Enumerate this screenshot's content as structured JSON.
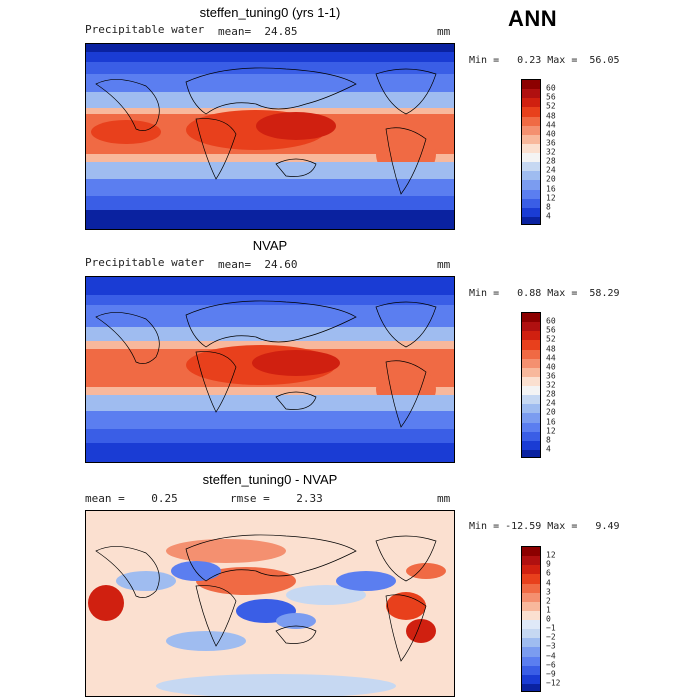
{
  "season": "ANN",
  "panels": [
    {
      "title": "steffen_tuning0 (yrs 1-1)",
      "left_label": "Precipitable water",
      "center_label": "mean=  24.85",
      "units": "mm",
      "minmax": "Min =   0.23 Max =  56.05"
    },
    {
      "title": "NVAP",
      "left_label": "Precipitable water",
      "center_label": "mean=  24.60",
      "units": "mm",
      "minmax": "Min =   0.88 Max =  58.29"
    },
    {
      "title": "steffen_tuning0 - NVAP",
      "left_label": "mean =    0.25",
      "center_label": "rmse =    2.33",
      "units": "mm",
      "minmax": "Min = -12.59 Max =   9.49"
    }
  ],
  "colorbars": {
    "abs_labels": [
      "60",
      "56",
      "52",
      "48",
      "44",
      "40",
      "36",
      "32",
      "28",
      "24",
      "20",
      "16",
      "12",
      "8",
      "4"
    ],
    "abs_colors": [
      "#8c0000",
      "#b01010",
      "#d02010",
      "#e8401c",
      "#f06a44",
      "#f49070",
      "#f8b89c",
      "#fbe0d0",
      "#f4f4f4",
      "#c6d8f2",
      "#9fbcf0",
      "#7b9cf0",
      "#5b7ef0",
      "#3a5ee6",
      "#1a3cd4",
      "#0a22a0"
    ],
    "diff_labels": [
      "12",
      "9",
      "6",
      "4",
      "3",
      "2",
      "1",
      "0",
      "−1",
      "−2",
      "−3",
      "−4",
      "−6",
      "−9",
      "−12"
    ],
    "diff_colors": [
      "#8c0000",
      "#b01010",
      "#d02010",
      "#e8401c",
      "#f06a44",
      "#f49070",
      "#f8b89c",
      "#fbe0d0",
      "#dfe9f8",
      "#c6d8f2",
      "#9fbcf0",
      "#7b9cf0",
      "#5b7ef0",
      "#3a5ee6",
      "#1a3cd4",
      "#0a22a0"
    ]
  }
}
